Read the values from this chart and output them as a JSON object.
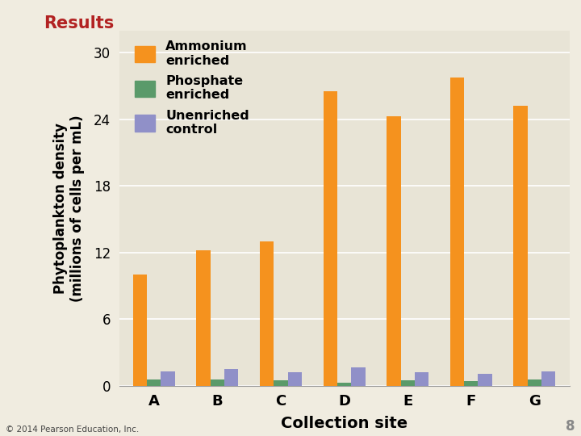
{
  "title": "Results",
  "title_color": "#b22222",
  "categories": [
    "A",
    "B",
    "C",
    "D",
    "E",
    "F",
    "G"
  ],
  "ammonium": [
    10.0,
    12.2,
    13.0,
    26.5,
    24.3,
    27.8,
    25.2
  ],
  "phosphate": [
    0.6,
    0.6,
    0.5,
    0.3,
    0.5,
    0.4,
    0.6
  ],
  "unenriched": [
    1.3,
    1.5,
    1.2,
    1.7,
    1.2,
    1.1,
    1.3
  ],
  "ammonium_color": "#f5921e",
  "phosphate_color": "#5a9a6a",
  "unenriched_color": "#9090c8",
  "plot_bg_color": "#e8e4d6",
  "outer_bg": "#f0ece0",
  "ylabel_line1": "Phytoplankton density",
  "ylabel_line2": "(millions of cells per mL)",
  "xlabel": "Collection site",
  "legend_labels": [
    "Ammonium\nenriched",
    "Phosphate\nenriched",
    "Unenriched\ncontrol"
  ],
  "yticks": [
    0,
    6,
    12,
    18,
    24,
    30
  ],
  "ylim": [
    0,
    32
  ],
  "bar_width": 0.22,
  "copyright": "© 2014 Pearson Education, Inc.",
  "page_num": "8"
}
